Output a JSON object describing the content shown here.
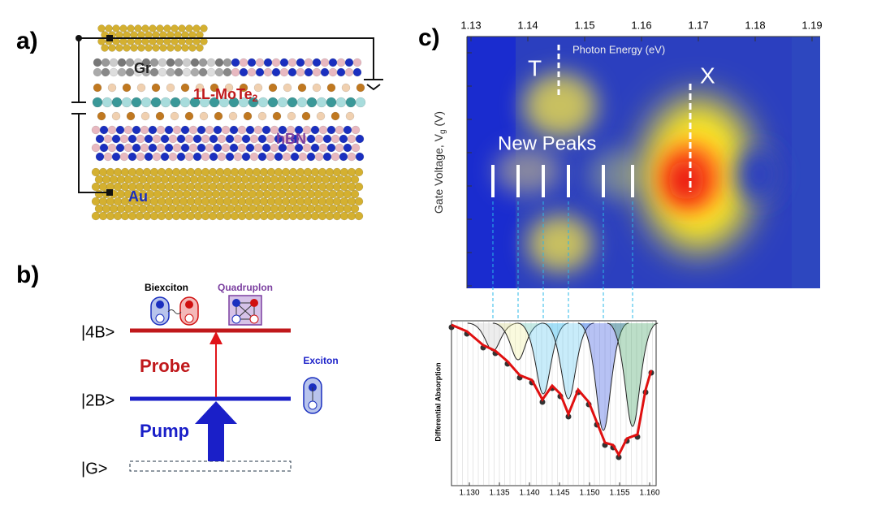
{
  "panel_a": {
    "label": "a)",
    "gr": "Gr",
    "mote": "1L-MoTe",
    "mote_sub": "2",
    "hbn": "hBN",
    "au": "Au"
  },
  "panel_b": {
    "label": "b)",
    "biexciton": "Biexciton",
    "quadruplon": "Quadruplon",
    "exciton": "Exciton",
    "level_4b": "|4B>",
    "level_2b": "|2B>",
    "level_g": "|G>",
    "probe": "Probe",
    "pump": "Pump"
  },
  "panel_c": {
    "label": "c)",
    "x_label": "Photon Energy (eV)",
    "y_label": "Gate Voltage, V",
    "y_label_sub": "g",
    "y_label_suffix": " (V)",
    "top_ticks": [
      "1.13",
      "1.14",
      "1.15",
      "1.16",
      "1.17",
      "1.18",
      "1.19"
    ],
    "t_label": "T",
    "x_peak_label": "X",
    "new_peaks": "New Peaks",
    "inset_y_label": "Differential Absorption",
    "inset_ticks": [
      "1.130",
      "1.135",
      "1.140",
      "1.145",
      "1.150",
      "1.155",
      "1.160"
    ]
  }
}
